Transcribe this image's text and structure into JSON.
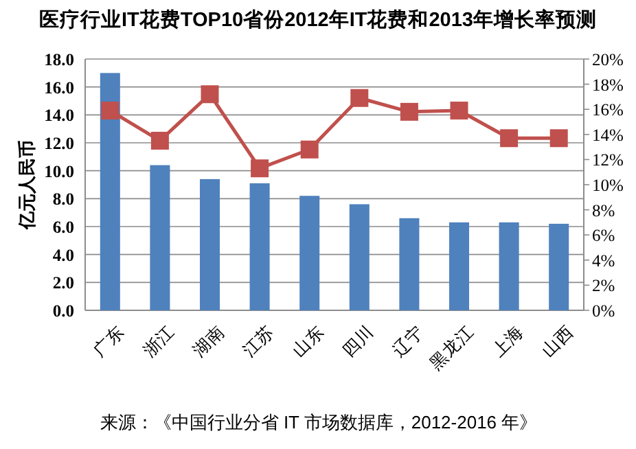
{
  "chart_data": {
    "type": "bar",
    "title": "医疗行业IT花费TOP10省份2012年IT花费和2013年增长率预测",
    "ylabel": "亿元人民币",
    "categories": [
      "广东",
      "浙江",
      "湖南",
      "江苏",
      "山东",
      "四川",
      "辽宁",
      "黑龙江",
      "上海",
      "山西"
    ],
    "series": [
      {
        "color": "#4f81bd",
        "values": [
          17.0,
          10.4,
          9.4,
          9.1,
          8.2,
          7.6,
          6.6,
          6.3,
          6.3,
          6.2
        ]
      },
      {
        "type": "line",
        "axis": "y2",
        "color": "#c0504d",
        "marker": "square",
        "values": [
          15.9,
          13.5,
          17.2,
          11.3,
          12.8,
          16.9,
          15.8,
          15.9,
          13.7,
          13.7
        ]
      }
    ],
    "ylim": [
      0,
      18
    ],
    "yticks": [
      {
        "value": 0,
        "label": "0.0"
      },
      {
        "value": 2,
        "label": "2.0"
      },
      {
        "value": 4,
        "label": "4.0"
      },
      {
        "value": 6,
        "label": "6.0"
      },
      {
        "value": 8,
        "label": "8.0"
      },
      {
        "value": 10,
        "label": "10.0"
      },
      {
        "value": 12,
        "label": "12.0"
      },
      {
        "value": 14,
        "label": "14.0"
      },
      {
        "value": 16,
        "label": "16.0"
      },
      {
        "value": 18,
        "label": "18.0"
      }
    ],
    "y2lim": [
      0,
      20
    ],
    "y2ticks": [
      {
        "value": 0,
        "label": "0%"
      },
      {
        "value": 2,
        "label": "2%"
      },
      {
        "value": 4,
        "label": "4%"
      },
      {
        "value": 6,
        "label": "6%"
      },
      {
        "value": 8,
        "label": "8%"
      },
      {
        "value": 10,
        "label": "10%"
      },
      {
        "value": 12,
        "label": "12%"
      },
      {
        "value": 14,
        "label": "14%"
      },
      {
        "value": 16,
        "label": "16%"
      },
      {
        "value": 18,
        "label": "18%"
      },
      {
        "value": 20,
        "label": "20%"
      }
    ],
    "grid": "y",
    "annotations": [
      "来源：《中国行业分省 IT 市场数据库，2012-2016 年》"
    ]
  }
}
